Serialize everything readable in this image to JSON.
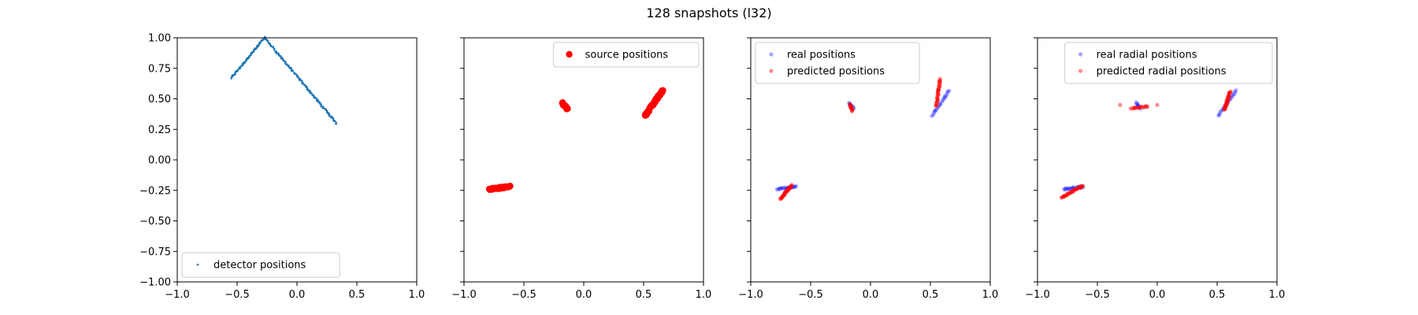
{
  "figure": {
    "title": "128 snapshots (l32)"
  },
  "chart_data": [
    {
      "type": "scatter",
      "xlim": [
        -1.0,
        1.0
      ],
      "ylim": [
        -1.0,
        1.0
      ],
      "xticks": [
        "−1.0",
        "−0.5",
        "0.0",
        "0.5",
        "1.0"
      ],
      "yticks": [
        "−1.00",
        "−0.75",
        "−0.50",
        "−0.25",
        "0.00",
        "0.25",
        "0.50",
        "0.75",
        "1.00"
      ],
      "show_ytick_labels": true,
      "legend": {
        "placement": "lower-left"
      },
      "series": [
        {
          "name": "detector positions",
          "color": "#1f77b4",
          "marker": "small",
          "segments": [
            {
              "from": [
                -0.55,
                0.67
              ],
              "to": [
                -0.27,
                1.0
              ],
              "n": 60
            },
            {
              "from": [
                -0.27,
                1.0
              ],
              "to": [
                0.33,
                0.3
              ],
              "n": 120
            }
          ]
        }
      ]
    },
    {
      "type": "scatter",
      "xlim": [
        -1.0,
        1.0
      ],
      "ylim": [
        -1.0,
        1.0
      ],
      "xticks": [
        "−1.0",
        "−0.5",
        "0.0",
        "0.5",
        "1.0"
      ],
      "yticks": [
        "−1.00",
        "−0.75",
        "−0.50",
        "−0.25",
        "0.00",
        "0.25",
        "0.50",
        "0.75",
        "1.00"
      ],
      "show_ytick_labels": false,
      "legend": {
        "placement": "upper-right"
      },
      "series": [
        {
          "name": "source positions",
          "color": "#ff0000",
          "marker": "large",
          "segments": [
            {
              "from": [
                -0.79,
                -0.24
              ],
              "to": [
                -0.62,
                -0.22
              ],
              "n": 40
            },
            {
              "from": [
                -0.18,
                0.47
              ],
              "to": [
                -0.14,
                0.42
              ],
              "n": 20
            },
            {
              "from": [
                0.51,
                0.36
              ],
              "to": [
                0.66,
                0.57
              ],
              "n": 45
            }
          ]
        }
      ]
    },
    {
      "type": "scatter",
      "xlim": [
        -1.0,
        1.0
      ],
      "ylim": [
        -1.0,
        1.0
      ],
      "xticks": [
        "−1.0",
        "−0.5",
        "0.0",
        "0.5",
        "1.0"
      ],
      "yticks": [
        "−1.00",
        "−0.75",
        "−0.50",
        "−0.25",
        "0.00",
        "0.25",
        "0.50",
        "0.75",
        "1.00"
      ],
      "show_ytick_labels": false,
      "legend": {
        "placement": "upper-left"
      },
      "series": [
        {
          "name": "real positions",
          "color": "#0000ff",
          "marker": "medium-faint",
          "segments": [
            {
              "from": [
                -0.78,
                -0.24
              ],
              "to": [
                -0.62,
                -0.22
              ],
              "n": 30
            },
            {
              "from": [
                -0.18,
                0.47
              ],
              "to": [
                -0.14,
                0.42
              ],
              "n": 12
            },
            {
              "from": [
                0.51,
                0.36
              ],
              "to": [
                0.66,
                0.57
              ],
              "n": 30
            }
          ]
        },
        {
          "name": "predicted positions",
          "color": "#ff0000",
          "marker": "medium",
          "segments": [
            {
              "from": [
                -0.75,
                -0.32
              ],
              "to": [
                -0.66,
                -0.21
              ],
              "n": 30
            },
            {
              "from": [
                -0.17,
                0.46
              ],
              "to": [
                -0.15,
                0.4
              ],
              "n": 12
            },
            {
              "from": [
                0.55,
                0.44
              ],
              "to": [
                0.58,
                0.66
              ],
              "n": 30
            }
          ]
        }
      ]
    },
    {
      "type": "scatter",
      "xlim": [
        -1.0,
        1.0
      ],
      "ylim": [
        -1.0,
        1.0
      ],
      "xticks": [
        "−1.0",
        "−0.5",
        "0.0",
        "0.5",
        "1.0"
      ],
      "yticks": [
        "−1.00",
        "−0.75",
        "−0.50",
        "−0.25",
        "0.00",
        "0.25",
        "0.50",
        "0.75",
        "1.00"
      ],
      "show_ytick_labels": false,
      "legend": {
        "placement": "upper-right"
      },
      "series": [
        {
          "name": "real radial positions",
          "color": "#0000ff",
          "marker": "medium-faint",
          "segments": [
            {
              "from": [
                -0.78,
                -0.24
              ],
              "to": [
                -0.62,
                -0.22
              ],
              "n": 30
            },
            {
              "from": [
                -0.18,
                0.47
              ],
              "to": [
                -0.14,
                0.42
              ],
              "n": 12
            },
            {
              "from": [
                0.51,
                0.36
              ],
              "to": [
                0.66,
                0.57
              ],
              "n": 30
            }
          ]
        },
        {
          "name": "predicted radial positions",
          "color": "#ff0000",
          "marker": "medium",
          "segments": [
            {
              "from": [
                -0.8,
                -0.31
              ],
              "to": [
                -0.62,
                -0.21
              ],
              "n": 35
            },
            {
              "from": [
                -0.22,
                0.42
              ],
              "to": [
                -0.08,
                0.44
              ],
              "n": 16
            },
            {
              "from": [
                0.56,
                0.41
              ],
              "to": [
                0.61,
                0.56
              ],
              "n": 30
            }
          ],
          "points": [
            [
              -0.6,
              0.73
            ],
            [
              -0.31,
              0.45
            ],
            [
              0.0,
              0.45
            ]
          ]
        }
      ]
    }
  ]
}
